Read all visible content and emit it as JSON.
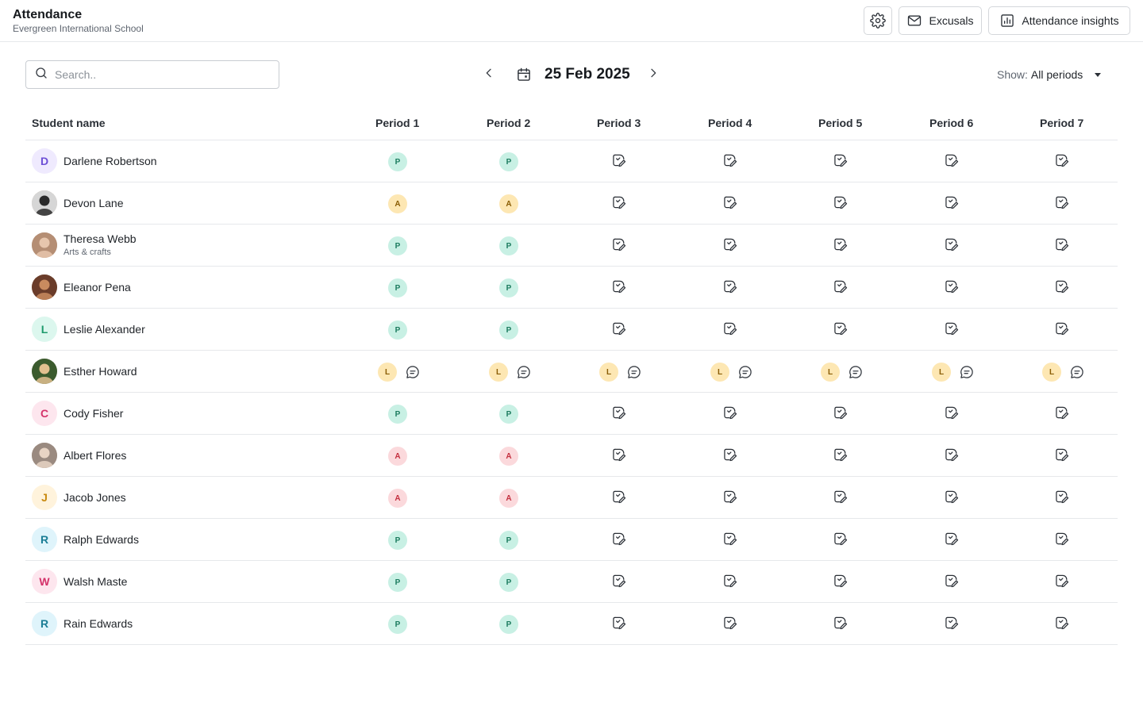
{
  "header": {
    "title": "Attendance",
    "subtitle": "Evergreen International School",
    "excusals_label": "Excusals",
    "insights_label": "Attendance insights"
  },
  "toolbar": {
    "search_placeholder": "Search..",
    "date": "25 Feb 2025",
    "show_label": "Show:",
    "show_value": "All periods"
  },
  "table": {
    "name_header": "Student name",
    "periods": [
      "Period 1",
      "Period 2",
      "Period 3",
      "Period 4",
      "Period 5",
      "Period 6",
      "Period 7"
    ],
    "rows": [
      {
        "name": "Darlene Robertson",
        "subtitle": "",
        "avatar": {
          "type": "initial",
          "letter": "D",
          "bg": "#efeafe",
          "fg": "#6d4fd6"
        },
        "marks": [
          "P",
          "P",
          "",
          "",
          "",
          "",
          ""
        ],
        "notes": [
          false,
          false,
          false,
          false,
          false,
          false,
          false
        ]
      },
      {
        "name": "Devon Lane",
        "subtitle": "",
        "avatar": {
          "type": "photo",
          "bg": "#d6d6d6",
          "fg": "#2a2a2a"
        },
        "marks": [
          "A",
          "A",
          "",
          "",
          "",
          "",
          ""
        ],
        "marks_tone": "amber",
        "notes": [
          false,
          false,
          false,
          false,
          false,
          false,
          false
        ]
      },
      {
        "name": "Theresa Webb",
        "subtitle": "Arts & crafts",
        "avatar": {
          "type": "photo",
          "bg": "#b58e74",
          "fg": "#e7c6ad"
        },
        "marks": [
          "P",
          "P",
          "",
          "",
          "",
          "",
          ""
        ],
        "notes": [
          false,
          false,
          false,
          false,
          false,
          false,
          false
        ]
      },
      {
        "name": "Eleanor Pena",
        "subtitle": "",
        "avatar": {
          "type": "photo",
          "bg": "#6a3c2a",
          "fg": "#c98b5f"
        },
        "marks": [
          "P",
          "P",
          "",
          "",
          "",
          "",
          ""
        ],
        "notes": [
          false,
          false,
          false,
          false,
          false,
          false,
          false
        ]
      },
      {
        "name": "Leslie Alexander",
        "subtitle": "",
        "avatar": {
          "type": "initial",
          "letter": "L",
          "bg": "#dcf7ee",
          "fg": "#1d9a6c"
        },
        "marks": [
          "P",
          "P",
          "",
          "",
          "",
          "",
          ""
        ],
        "notes": [
          false,
          false,
          false,
          false,
          false,
          false,
          false
        ]
      },
      {
        "name": "Esther Howard",
        "subtitle": "",
        "avatar": {
          "type": "photo",
          "bg": "#3b5b2e",
          "fg": "#e2c08f"
        },
        "marks": [
          "L",
          "L",
          "L",
          "L",
          "L",
          "L",
          "L"
        ],
        "notes": [
          true,
          true,
          true,
          true,
          true,
          true,
          true
        ]
      },
      {
        "name": "Cody Fisher",
        "subtitle": "",
        "avatar": {
          "type": "initial",
          "letter": "C",
          "bg": "#fde6ee",
          "fg": "#d4326a"
        },
        "marks": [
          "P",
          "P",
          "",
          "",
          "",
          "",
          ""
        ],
        "notes": [
          false,
          false,
          false,
          false,
          false,
          false,
          false
        ]
      },
      {
        "name": "Albert Flores",
        "subtitle": "",
        "avatar": {
          "type": "photo",
          "bg": "#9a8a80",
          "fg": "#e8d4c4"
        },
        "marks": [
          "A",
          "A",
          "",
          "",
          "",
          "",
          ""
        ],
        "marks_tone": "red",
        "notes": [
          false,
          false,
          false,
          false,
          false,
          false,
          false
        ]
      },
      {
        "name": "Jacob Jones",
        "subtitle": "",
        "avatar": {
          "type": "initial",
          "letter": "J",
          "bg": "#fff3dc",
          "fg": "#c98a10"
        },
        "marks": [
          "A",
          "A",
          "",
          "",
          "",
          "",
          ""
        ],
        "marks_tone": "red",
        "notes": [
          false,
          false,
          false,
          false,
          false,
          false,
          false
        ]
      },
      {
        "name": "Ralph Edwards",
        "subtitle": "",
        "avatar": {
          "type": "initial",
          "letter": "R",
          "bg": "#dff4fb",
          "fg": "#1a7d95"
        },
        "marks": [
          "P",
          "P",
          "",
          "",
          "",
          "",
          ""
        ],
        "notes": [
          false,
          false,
          false,
          false,
          false,
          false,
          false
        ]
      },
      {
        "name": "Walsh Maste",
        "subtitle": "",
        "avatar": {
          "type": "initial",
          "letter": "W",
          "bg": "#fde6ee",
          "fg": "#d4326a"
        },
        "marks": [
          "P",
          "P",
          "",
          "",
          "",
          "",
          ""
        ],
        "notes": [
          false,
          false,
          false,
          false,
          false,
          false,
          false
        ]
      },
      {
        "name": "Rain Edwards",
        "subtitle": "",
        "avatar": {
          "type": "initial",
          "letter": "R",
          "bg": "#dff4fb",
          "fg": "#1a7d95"
        },
        "marks": [
          "P",
          "P",
          "",
          "",
          "",
          "",
          ""
        ],
        "notes": [
          false,
          false,
          false,
          false,
          false,
          false,
          false
        ]
      }
    ]
  },
  "icons": {
    "settings": "gear-icon",
    "excusals": "mail-icon",
    "insights": "bar-chart-icon",
    "search": "search-icon",
    "prev": "chevron-left-icon",
    "calendar": "calendar-icon",
    "next": "chevron-right-icon",
    "caret": "caret-down-icon",
    "unmarked": "mark-attendance-icon",
    "note": "comment-icon"
  }
}
